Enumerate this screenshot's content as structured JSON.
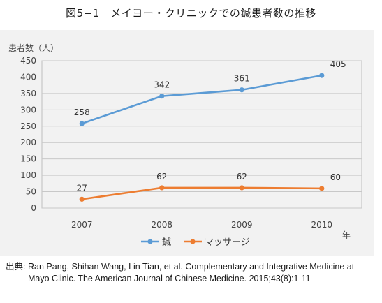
{
  "title": "図5−1　メイヨー・クリニックでの鍼患者数の推移",
  "source": {
    "label": "出典:",
    "text": "Ran Pang, Shihan Wang, Lin Tian, et al. Complementary and Integrative Medicine at Mayo Clinic. The American Journal of Chinese Medicine. 2015;43(8):1-11"
  },
  "chart_data": {
    "type": "line",
    "ylabel": "患者数（人）",
    "xlabel": "年",
    "categories": [
      "2007",
      "2008",
      "2009",
      "2010"
    ],
    "ylim": [
      0,
      450
    ],
    "yticks": [
      0,
      50,
      100,
      150,
      200,
      250,
      300,
      350,
      400,
      450
    ],
    "grid": true,
    "legend": "bottom",
    "series": [
      {
        "name": "鍼",
        "values": [
          258,
          342,
          361,
          405
        ],
        "color": "#5b9bd5"
      },
      {
        "name": "マッサージ",
        "values": [
          27,
          62,
          62,
          60
        ],
        "color": "#ed7d31"
      }
    ]
  }
}
